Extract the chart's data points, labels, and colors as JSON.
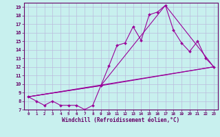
{
  "xlabel": "Windchill (Refroidissement éolien,°C)",
  "bg_color": "#c8f0ee",
  "line_color": "#990099",
  "grid_color": "#bbbbdd",
  "axis_color": "#660066",
  "text_color": "#660066",
  "xlim": [
    -0.5,
    23.5
  ],
  "ylim": [
    7,
    19.5
  ],
  "yticks": [
    7,
    8,
    9,
    10,
    11,
    12,
    13,
    14,
    15,
    16,
    17,
    18,
    19
  ],
  "xticks": [
    0,
    1,
    2,
    3,
    4,
    5,
    6,
    7,
    8,
    9,
    10,
    11,
    12,
    13,
    14,
    15,
    16,
    17,
    18,
    19,
    20,
    21,
    22,
    23
  ],
  "line1_x": [
    0,
    1,
    2,
    3,
    4,
    5,
    6,
    7,
    8,
    9,
    10,
    11,
    12,
    13,
    14,
    15,
    16,
    17,
    18,
    19,
    20,
    21,
    22,
    23
  ],
  "line1_y": [
    8.5,
    8.0,
    7.5,
    8.0,
    7.5,
    7.5,
    7.5,
    7.0,
    7.5,
    9.8,
    12.1,
    14.5,
    14.8,
    16.7,
    15.1,
    18.1,
    18.4,
    19.2,
    16.3,
    14.8,
    13.8,
    15.0,
    13.0,
    12.0
  ],
  "line2_x": [
    0,
    9,
    17,
    23
  ],
  "line2_y": [
    8.5,
    9.8,
    19.2,
    12.0
  ],
  "line3_x": [
    0,
    23
  ],
  "line3_y": [
    8.5,
    12.0
  ],
  "line4_x": [
    0,
    9,
    23
  ],
  "line4_y": [
    8.5,
    9.8,
    12.0
  ]
}
